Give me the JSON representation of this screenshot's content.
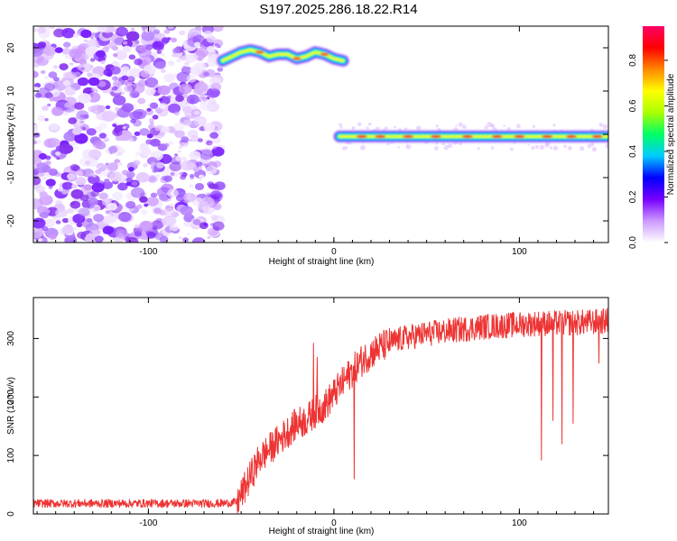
{
  "title": "S197.2025.286.18.22.R14",
  "chart_data": [
    {
      "type": "heatmap",
      "name": "spectrogram",
      "xlabel": "Height of straight line (km)",
      "ylabel": "Frequency (Hz)",
      "xlim": [
        -162,
        148
      ],
      "ylim": [
        -25,
        25
      ],
      "x_ticks": [
        -100,
        0,
        100
      ],
      "x_tick_labels": [
        "-100",
        "0",
        "100"
      ],
      "y_ticks": [
        -20,
        -10,
        0,
        10,
        20
      ],
      "y_tick_labels": [
        "-20",
        "-10",
        "0",
        "10",
        "20"
      ],
      "noise_region_x": [
        -162,
        -61
      ],
      "signal_segments": [
        {
          "x": [
            -60,
            -55,
            -50,
            -45,
            -40,
            -35,
            -30,
            -25,
            -20,
            -15,
            -10,
            -5,
            0,
            5
          ],
          "y": [
            17,
            18,
            19,
            19.5,
            19,
            18,
            18.5,
            18.5,
            17.5,
            18,
            19,
            18.5,
            17.5,
            17
          ]
        },
        {
          "x": [
            3,
            148
          ],
          "y": [
            -0.5,
            -0.5
          ]
        }
      ],
      "colorbar": {
        "label": "Normalized spectral amplitude",
        "range": [
          0,
          0.95
        ],
        "ticks": [
          0.0,
          0.2,
          0.4,
          0.6,
          0.8
        ],
        "tick_labels": [
          "0.0",
          "0.2",
          "0.4",
          "0.6",
          "0.8"
        ],
        "colors": [
          "#ffffff",
          "#cc99ff",
          "#7700ff",
          "#0000ff",
          "#00ccff",
          "#00ff66",
          "#aaff00",
          "#ffff00",
          "#ff8800",
          "#ff0000",
          "#ff0066"
        ]
      }
    },
    {
      "type": "line",
      "name": "snr",
      "xlabel": "Height of straight line (km)",
      "ylabel": "SNR (10 * v/v)",
      "xlim": [
        -162,
        148
      ],
      "ylim": [
        0,
        370
      ],
      "x_ticks": [
        -100,
        0,
        100
      ],
      "x_tick_labels": [
        "-100",
        "0",
        "100"
      ],
      "y_ticks": [
        0,
        100,
        200,
        300
      ],
      "y_tick_labels": [
        "0",
        "100",
        "200",
        "300"
      ],
      "color": "#ee3333",
      "series": [
        {
          "name": "SNR",
          "x": [
            -162,
            -140,
            -120,
            -100,
            -80,
            -60,
            -52,
            -48,
            -44,
            -40,
            -35,
            -30,
            -25,
            -20,
            -15,
            -10,
            -5,
            0,
            5,
            10,
            15,
            20,
            25,
            30,
            35,
            40,
            50,
            60,
            70,
            80,
            90,
            100,
            110,
            120,
            130,
            140,
            148
          ],
          "y": [
            18,
            18,
            18,
            18,
            18,
            18,
            20,
            45,
            70,
            95,
            110,
            125,
            140,
            155,
            160,
            175,
            185,
            205,
            225,
            245,
            262,
            275,
            285,
            292,
            298,
            302,
            308,
            312,
            316,
            320,
            322,
            324,
            326,
            326,
            327,
            328,
            330
          ],
          "spikes": [
            {
              "x": -11,
              "y": 292
            },
            {
              "x": -9,
              "y": 268
            },
            {
              "x": 11,
              "y": 60
            },
            {
              "x": 112,
              "y": 92
            },
            {
              "x": 118,
              "y": 160
            },
            {
              "x": 123,
              "y": 120
            },
            {
              "x": 129,
              "y": 155
            },
            {
              "x": 143,
              "y": 258
            }
          ]
        }
      ]
    }
  ]
}
